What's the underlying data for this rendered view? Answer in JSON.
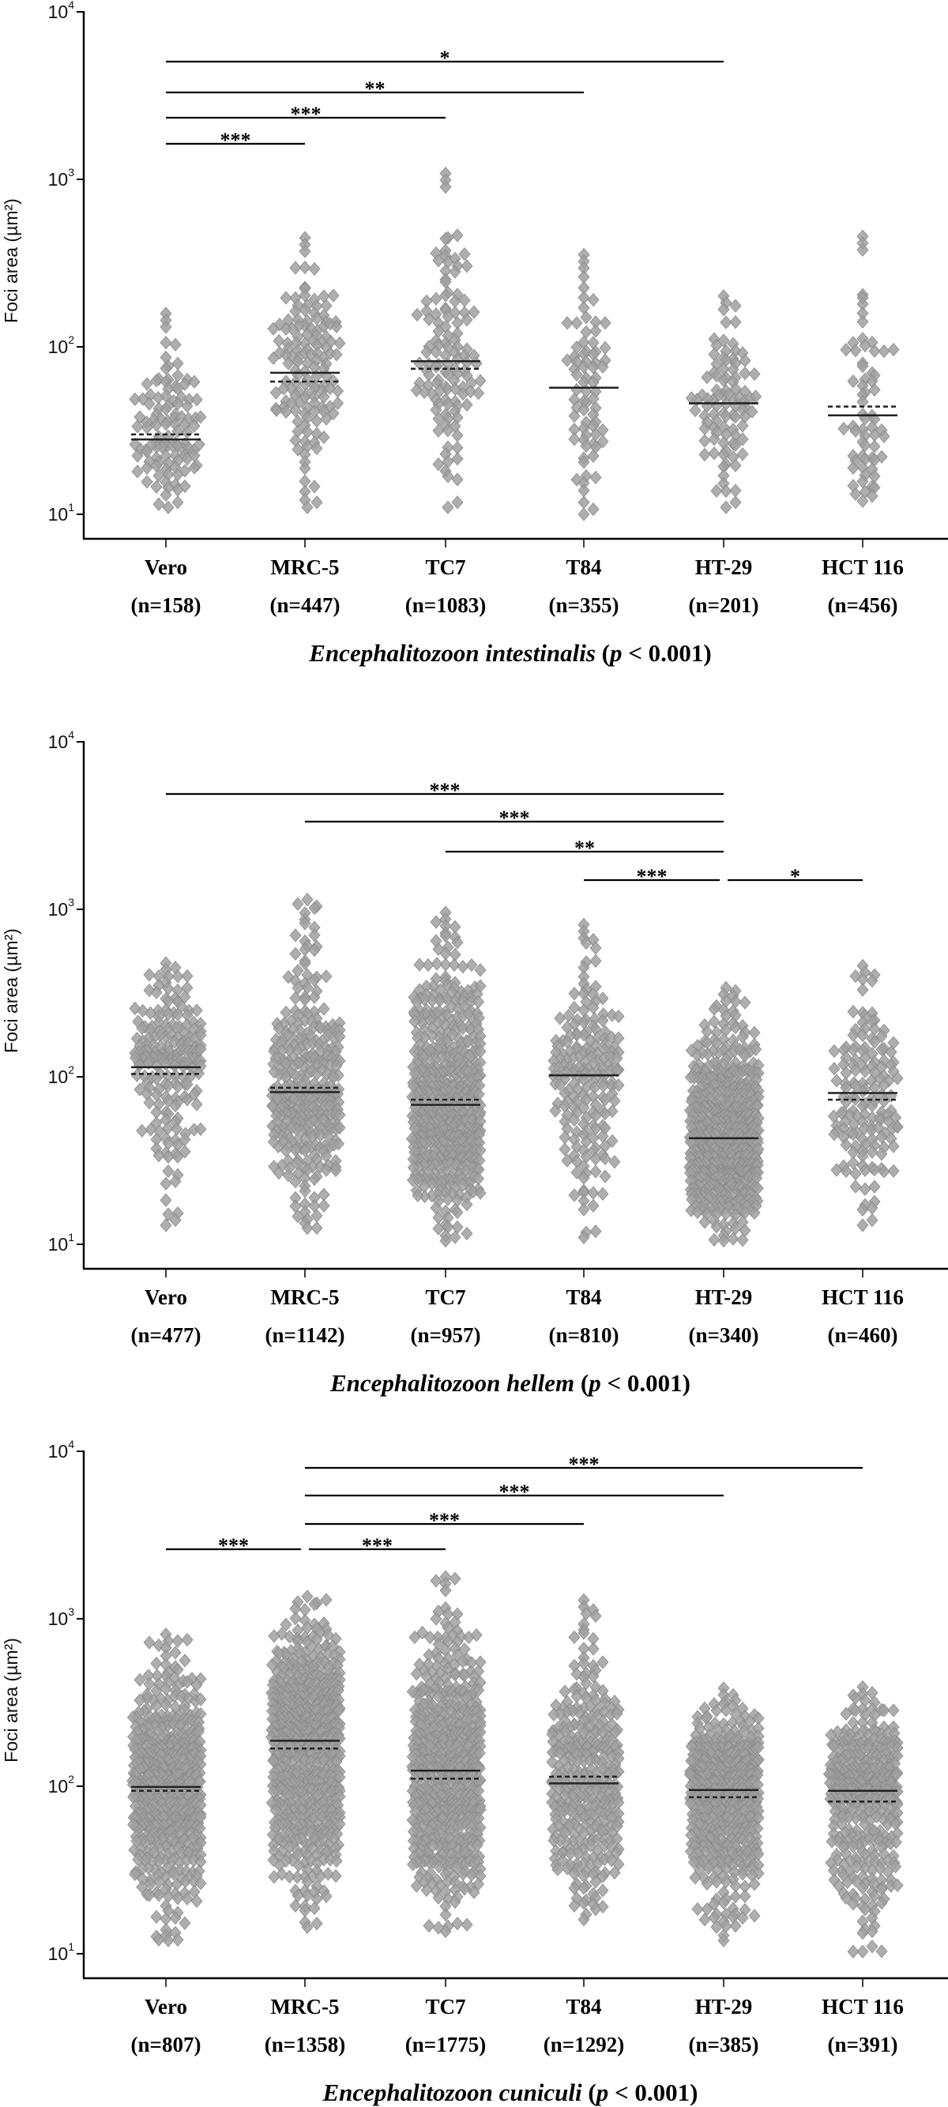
{
  "chart_data": [
    {
      "type": "scatter",
      "yscale": "log",
      "ylim": [
        7,
        10000
      ],
      "title": {
        "species": "Encephalitozoon intestinalis",
        "open": " (",
        "stat": "p",
        "rest": " < 0.001)"
      },
      "ylabel": "Foci area (µm²)",
      "yticks": [
        10,
        100,
        1000,
        10000
      ],
      "ytick_labels": [
        {
          "base": "10",
          "exp": "1"
        },
        {
          "base": "10",
          "exp": "2"
        },
        {
          "base": "10",
          "exp": "3"
        },
        {
          "base": "10",
          "exp": "4"
        }
      ],
      "categories": [
        "Vero",
        "MRC-5",
        "TC7",
        "T84",
        "HT-29",
        "HCT 116"
      ],
      "n_labels": [
        "(n=158)",
        "(n=447)",
        "(n=1083)",
        "(n=355)",
        "(n=201)",
        "(n=456)"
      ],
      "groups": [
        {
          "min": 11,
          "max": 158,
          "solid_line": 28,
          "dashed_line": 30
        },
        {
          "min": 11,
          "max": 447,
          "solid_line": 70,
          "dashed_line": 62
        },
        {
          "min": 11,
          "max": 1083,
          "solid_line": 82,
          "dashed_line": 74
        },
        {
          "min": 10,
          "max": 355,
          "solid_line": 57,
          "dashed_line": 57
        },
        {
          "min": 11,
          "max": 201,
          "solid_line": 46,
          "dashed_line": 46
        },
        {
          "min": 12,
          "max": 456,
          "solid_line": 39,
          "dashed_line": 44
        }
      ],
      "significance": [
        {
          "from": "Vero",
          "to": "HT-29",
          "label": "*"
        },
        {
          "from": "Vero",
          "to": "T84",
          "label": "**"
        },
        {
          "from": "Vero",
          "to": "TC7",
          "label": "***"
        },
        {
          "from": "Vero",
          "to": "MRC-5",
          "label": "***"
        }
      ],
      "point_color": "#a0a0a0"
    },
    {
      "type": "scatter",
      "yscale": "log",
      "ylim": [
        7,
        10000
      ],
      "title": {
        "species": "Encephalitozoon hellem",
        "open": " (",
        "stat": "p",
        "rest": " < 0.001)"
      },
      "ylabel": "Foci area (µm²)",
      "yticks": [
        10,
        100,
        1000,
        10000
      ],
      "ytick_labels": [
        {
          "base": "10",
          "exp": "1"
        },
        {
          "base": "10",
          "exp": "2"
        },
        {
          "base": "10",
          "exp": "3"
        },
        {
          "base": "10",
          "exp": "4"
        }
      ],
      "categories": [
        "Vero",
        "MRC-5",
        "TC7",
        "T84",
        "HT-29",
        "HCT 116"
      ],
      "n_labels": [
        "(n=477)",
        "(n=1142)",
        "(n=957)",
        "(n=810)",
        "(n=340)",
        "(n=460)"
      ],
      "groups": [
        {
          "min": 13,
          "max": 477,
          "solid_line": 114,
          "dashed_line": 104
        },
        {
          "min": 12.5,
          "max": 1142,
          "solid_line": 81,
          "dashed_line": 86
        },
        {
          "min": 10.5,
          "max": 957,
          "solid_line": 68,
          "dashed_line": 73
        },
        {
          "min": 11,
          "max": 810,
          "solid_line": 102,
          "dashed_line": 102
        },
        {
          "min": 10.5,
          "max": 340,
          "solid_line": 43,
          "dashed_line": 43
        },
        {
          "min": 13,
          "max": 460,
          "solid_line": 80,
          "dashed_line": 73
        }
      ],
      "significance": [
        {
          "from": "Vero",
          "to": "HT-29",
          "label": "***"
        },
        {
          "from": "MRC-5",
          "to": "HT-29",
          "label": "***"
        },
        {
          "from": "TC7",
          "to": "HT-29",
          "label": "**"
        },
        {
          "from": "T84",
          "to": "HT-29",
          "label": "***"
        },
        {
          "from": "HT-29",
          "to": "HCT 116",
          "label": "*"
        }
      ],
      "point_color": "#a0a0a0"
    },
    {
      "type": "scatter",
      "yscale": "log",
      "ylim": [
        7,
        10000
      ],
      "title": {
        "species": "Encephalitozoon cuniculi",
        "open": " (",
        "stat": "p",
        "rest": " < 0.001)"
      },
      "ylabel": "Foci area (µm²)",
      "yticks": [
        10,
        100,
        1000,
        10000
      ],
      "ytick_labels": [
        {
          "base": "10",
          "exp": "1"
        },
        {
          "base": "10",
          "exp": "2"
        },
        {
          "base": "10",
          "exp": "3"
        },
        {
          "base": "10",
          "exp": "4"
        }
      ],
      "categories": [
        "Vero",
        "MRC-5",
        "TC7",
        "T84",
        "HT-29",
        "HCT 116"
      ],
      "n_labels": [
        "(n=807)",
        "(n=1358)",
        "(n=1775)",
        "(n=1292)",
        "(n=385)",
        "(n=391)"
      ],
      "groups": [
        {
          "min": 12,
          "max": 807,
          "solid_line": 99,
          "dashed_line": 94
        },
        {
          "min": 14.4,
          "max": 1358,
          "solid_line": 187,
          "dashed_line": 168
        },
        {
          "min": 13.6,
          "max": 1775,
          "solid_line": 124,
          "dashed_line": 111
        },
        {
          "min": 16,
          "max": 1292,
          "solid_line": 104,
          "dashed_line": 114
        },
        {
          "min": 12,
          "max": 385,
          "solid_line": 95,
          "dashed_line": 86
        },
        {
          "min": 10.3,
          "max": 391,
          "solid_line": 94,
          "dashed_line": 81
        }
      ],
      "significance": [
        {
          "from": "MRC-5",
          "to": "HCT 116",
          "label": "***"
        },
        {
          "from": "MRC-5",
          "to": "HT-29",
          "label": "***"
        },
        {
          "from": "MRC-5",
          "to": "T84",
          "label": "***"
        },
        {
          "from": "Vero",
          "to": "MRC-5",
          "label": "***"
        },
        {
          "from": "MRC-5",
          "to": "TC7",
          "label": "***"
        }
      ],
      "point_color": "#a0a0a0"
    }
  ]
}
